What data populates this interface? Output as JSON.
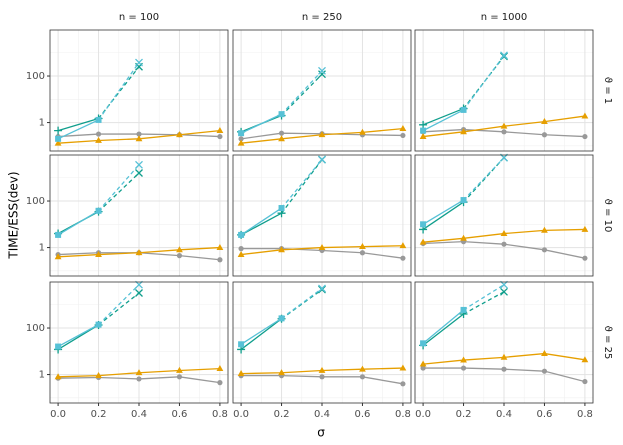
{
  "chart_data": {
    "type": "line",
    "xlabel": "σ",
    "ylabel": "TIME/ESS(dev)",
    "columns": [
      "n = 100",
      "n = 250",
      "n = 1000"
    ],
    "rows": [
      "ϑ = 1",
      "ϑ = 10",
      "ϑ = 25"
    ],
    "x": [
      0,
      0.2,
      0.4,
      0.6,
      0.8
    ],
    "xlim": [
      -0.04,
      0.84
    ],
    "xticks": [
      {
        "value": 0,
        "label": "0.0"
      },
      0.2,
      0.4,
      0.6,
      0.8
    ],
    "xminor": [
      0.1,
      0.3,
      0.5,
      0.7
    ],
    "ylim": [
      0.06,
      9500
    ],
    "yticks": [
      1,
      100
    ],
    "yminor": [
      0.1,
      10,
      1000
    ],
    "log_y": true,
    "grid": true,
    "panels": [
      {
        "series": [
          {
            "color": "#999999",
            "marker": "circle",
            "values": [
              0.25,
              0.32,
              0.32,
              0.3,
              0.25
            ]
          },
          {
            "color": "#E69F00",
            "marker": "triangle",
            "values": [
              0.13,
              0.17,
              0.2,
              0.3,
              0.45
            ]
          },
          {
            "color": "#0f9e8c",
            "marker": "plus",
            "values": [
              0.45,
              1.5,
              null,
              null,
              null
            ]
          },
          {
            "color": "#0f9e8c",
            "marker": "x",
            "linestyle": "dashed",
            "values": [
              null,
              1.5,
              250,
              null,
              null
            ]
          },
          {
            "color": "#56c1d6",
            "marker": "square",
            "values": [
              0.2,
              1.3,
              null,
              null,
              null
            ]
          },
          {
            "color": "#56c1d6",
            "marker": "x",
            "linestyle": "dashed",
            "values": [
              null,
              1.3,
              380,
              null,
              null
            ]
          }
        ]
      },
      {
        "series": [
          {
            "color": "#999999",
            "marker": "circle",
            "values": [
              0.2,
              0.35,
              0.33,
              0.3,
              0.28
            ]
          },
          {
            "color": "#E69F00",
            "marker": "triangle",
            "values": [
              0.13,
              0.2,
              0.3,
              0.38,
              0.55
            ]
          },
          {
            "color": "#0f9e8c",
            "marker": "plus",
            "values": [
              0.4,
              2.0,
              null,
              null,
              null
            ]
          },
          {
            "color": "#0f9e8c",
            "marker": "x",
            "linestyle": "dashed",
            "values": [
              null,
              2.0,
              120,
              null,
              null
            ]
          },
          {
            "color": "#56c1d6",
            "marker": "square",
            "values": [
              0.35,
              2.3,
              null,
              null,
              null
            ]
          },
          {
            "color": "#56c1d6",
            "marker": "x",
            "linestyle": "dashed",
            "values": [
              null,
              2.3,
              167,
              null,
              null
            ]
          }
        ]
      },
      {
        "series": [
          {
            "color": "#999999",
            "marker": "circle",
            "values": [
              0.4,
              0.5,
              0.4,
              0.3,
              0.25
            ]
          },
          {
            "color": "#E69F00",
            "marker": "triangle",
            "values": [
              0.25,
              0.4,
              0.7,
              1.1,
              1.9
            ]
          },
          {
            "color": "#0f9e8c",
            "marker": "plus",
            "values": [
              0.8,
              4,
              null,
              null,
              null
            ]
          },
          {
            "color": "#0f9e8c",
            "marker": "x",
            "linestyle": "dashed",
            "values": [
              null,
              4,
              700,
              null,
              null
            ]
          },
          {
            "color": "#56c1d6",
            "marker": "square",
            "values": [
              0.45,
              3.5,
              null,
              null,
              null
            ]
          },
          {
            "color": "#56c1d6",
            "marker": "x",
            "linestyle": "dashed",
            "values": [
              null,
              3.5,
              770,
              null,
              null
            ]
          }
        ]
      },
      {
        "series": [
          {
            "color": "#999999",
            "marker": "circle",
            "values": [
              0.5,
              0.6,
              0.6,
              0.45,
              0.3
            ]
          },
          {
            "color": "#E69F00",
            "marker": "triangle",
            "values": [
              0.4,
              0.5,
              0.6,
              0.8,
              1.0
            ]
          },
          {
            "color": "#0f9e8c",
            "marker": "plus",
            "values": [
              4,
              35,
              null,
              null,
              null
            ]
          },
          {
            "color": "#0f9e8c",
            "marker": "x",
            "linestyle": "dashed",
            "values": [
              null,
              35,
              1600,
              null,
              null
            ]
          },
          {
            "color": "#56c1d6",
            "marker": "square",
            "values": [
              3.5,
              38,
              null,
              null,
              null
            ]
          },
          {
            "color": "#56c1d6",
            "marker": "x",
            "linestyle": "dashed",
            "values": [
              null,
              38,
              3600,
              null,
              null
            ]
          }
        ]
      },
      {
        "series": [
          {
            "color": "#999999",
            "marker": "circle",
            "values": [
              0.9,
              0.9,
              0.75,
              0.6,
              0.35
            ]
          },
          {
            "color": "#E69F00",
            "marker": "triangle",
            "values": [
              0.5,
              0.8,
              1.0,
              1.1,
              1.2
            ]
          },
          {
            "color": "#0f9e8c",
            "marker": "plus",
            "values": [
              3.5,
              30,
              null,
              null,
              null
            ]
          },
          {
            "color": "#0f9e8c",
            "marker": "x",
            "linestyle": "dashed",
            "values": [
              null,
              30,
              6000,
              null,
              null
            ]
          },
          {
            "color": "#56c1d6",
            "marker": "square",
            "values": [
              3.5,
              50,
              null,
              null,
              null
            ]
          },
          {
            "color": "#56c1d6",
            "marker": "x",
            "linestyle": "dashed",
            "values": [
              null,
              50,
              6000,
              null,
              null
            ]
          }
        ]
      },
      {
        "series": [
          {
            "color": "#999999",
            "marker": "circle",
            "values": [
              1.5,
              1.8,
              1.4,
              0.8,
              0.35
            ]
          },
          {
            "color": "#E69F00",
            "marker": "triangle",
            "values": [
              1.7,
              2.5,
              4,
              5.5,
              6
            ]
          },
          {
            "color": "#0f9e8c",
            "marker": "plus",
            "values": [
              6,
              90,
              null,
              null,
              null
            ]
          },
          {
            "color": "#0f9e8c",
            "marker": "x",
            "linestyle": "dashed",
            "values": [
              null,
              90,
              7300,
              null,
              null
            ]
          },
          {
            "color": "#56c1d6",
            "marker": "square",
            "values": [
              10,
              110,
              null,
              null,
              null
            ]
          },
          {
            "color": "#56c1d6",
            "marker": "x",
            "linestyle": "dashed",
            "values": [
              null,
              110,
              7300,
              null,
              null
            ]
          }
        ]
      },
      {
        "series": [
          {
            "color": "#999999",
            "marker": "circle",
            "values": [
              0.7,
              0.75,
              0.65,
              0.8,
              0.45
            ]
          },
          {
            "color": "#E69F00",
            "marker": "triangle",
            "values": [
              0.8,
              0.9,
              1.2,
              1.5,
              1.8
            ]
          },
          {
            "color": "#0f9e8c",
            "marker": "plus",
            "values": [
              12,
              135,
              null,
              null,
              null
            ]
          },
          {
            "color": "#0f9e8c",
            "marker": "x",
            "linestyle": "dashed",
            "values": [
              null,
              135,
              3200,
              null,
              null
            ]
          },
          {
            "color": "#56c1d6",
            "marker": "square",
            "values": [
              16,
              140,
              null,
              null,
              null
            ]
          },
          {
            "color": "#56c1d6",
            "marker": "x",
            "linestyle": "dashed",
            "values": [
              null,
              140,
              7300,
              null,
              null
            ]
          }
        ]
      },
      {
        "series": [
          {
            "color": "#999999",
            "marker": "circle",
            "values": [
              0.9,
              0.9,
              0.8,
              0.8,
              0.4
            ]
          },
          {
            "color": "#E69F00",
            "marker": "triangle",
            "values": [
              1.1,
              1.2,
              1.5,
              1.7,
              1.9
            ]
          },
          {
            "color": "#0f9e8c",
            "marker": "plus",
            "values": [
              12,
              250,
              null,
              null,
              null
            ]
          },
          {
            "color": "#0f9e8c",
            "marker": "x",
            "linestyle": "dashed",
            "values": [
              null,
              250,
              4500,
              null,
              null
            ]
          },
          {
            "color": "#56c1d6",
            "marker": "square",
            "values": [
              20,
              260,
              null,
              null,
              null
            ]
          },
          {
            "color": "#56c1d6",
            "marker": "x",
            "linestyle": "dashed",
            "values": [
              null,
              260,
              5000,
              null,
              null
            ]
          }
        ]
      },
      {
        "series": [
          {
            "color": "#999999",
            "marker": "circle",
            "values": [
              1.9,
              1.9,
              1.7,
              1.4,
              0.5
            ]
          },
          {
            "color": "#E69F00",
            "marker": "triangle",
            "values": [
              2.8,
              4.2,
              5.5,
              8,
              4.3
            ]
          },
          {
            "color": "#0f9e8c",
            "marker": "plus",
            "values": [
              18,
              400,
              null,
              null,
              null
            ]
          },
          {
            "color": "#0f9e8c",
            "marker": "x",
            "linestyle": "dashed",
            "values": [
              null,
              400,
              3600,
              null,
              null
            ]
          },
          {
            "color": "#56c1d6",
            "marker": "square",
            "values": [
              22,
              600,
              null,
              null,
              null
            ]
          },
          {
            "color": "#56c1d6",
            "marker": "x",
            "linestyle": "dashed",
            "values": [
              null,
              600,
              7300,
              null,
              null
            ]
          }
        ]
      }
    ]
  }
}
